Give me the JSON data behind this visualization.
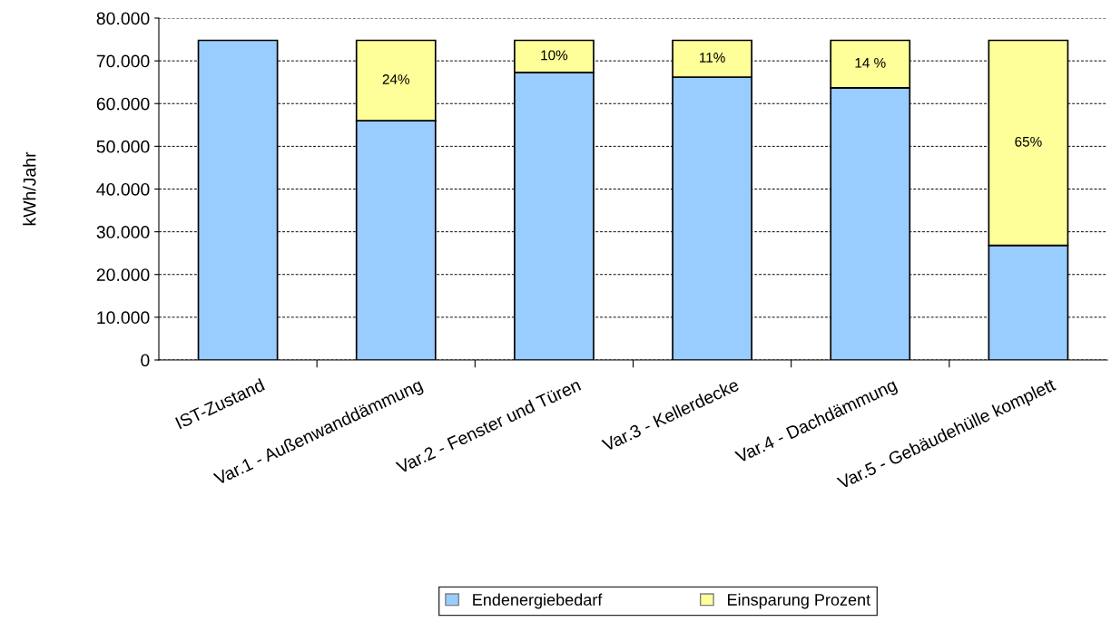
{
  "chart_data": {
    "type": "bar",
    "stacked": true,
    "ylabel": "kWh/Jahr",
    "categories": [
      "IST-Zustand",
      "Var.1 - Außenwanddämmung",
      "Var.2 - Fenster und Türen",
      "Var.3 - Kellerdecke",
      "Var.4 - Dachdämmung",
      "Var.5 - Gebäudehülle komplett"
    ],
    "series": [
      {
        "name": "Endenergiebedarf",
        "color": "#99ccff",
        "values": [
          74800,
          56000,
          67300,
          66200,
          63700,
          26800
        ]
      },
      {
        "name": "Einsparung Prozent",
        "color": "#ffff99",
        "values": [
          null,
          18800,
          7500,
          8600,
          11100,
          48000
        ]
      }
    ],
    "annotations": [
      "24%",
      "10%",
      "11%",
      "14 %",
      "65%"
    ],
    "ylim": [
      0,
      80000
    ],
    "yticks": [
      0,
      {
        "value": 10000,
        "label": "10.000"
      },
      {
        "value": 20000,
        "label": "20.000"
      },
      {
        "value": 30000,
        "label": "30.000"
      },
      {
        "value": 40000,
        "label": "40.000"
      },
      {
        "value": 50000,
        "label": "50.000"
      },
      {
        "value": 60000,
        "label": "60.000"
      },
      {
        "value": 70000,
        "label": "70.000"
      },
      {
        "value": 80000,
        "label": "80.000"
      }
    ],
    "grid": "y",
    "legend": "bottom"
  }
}
